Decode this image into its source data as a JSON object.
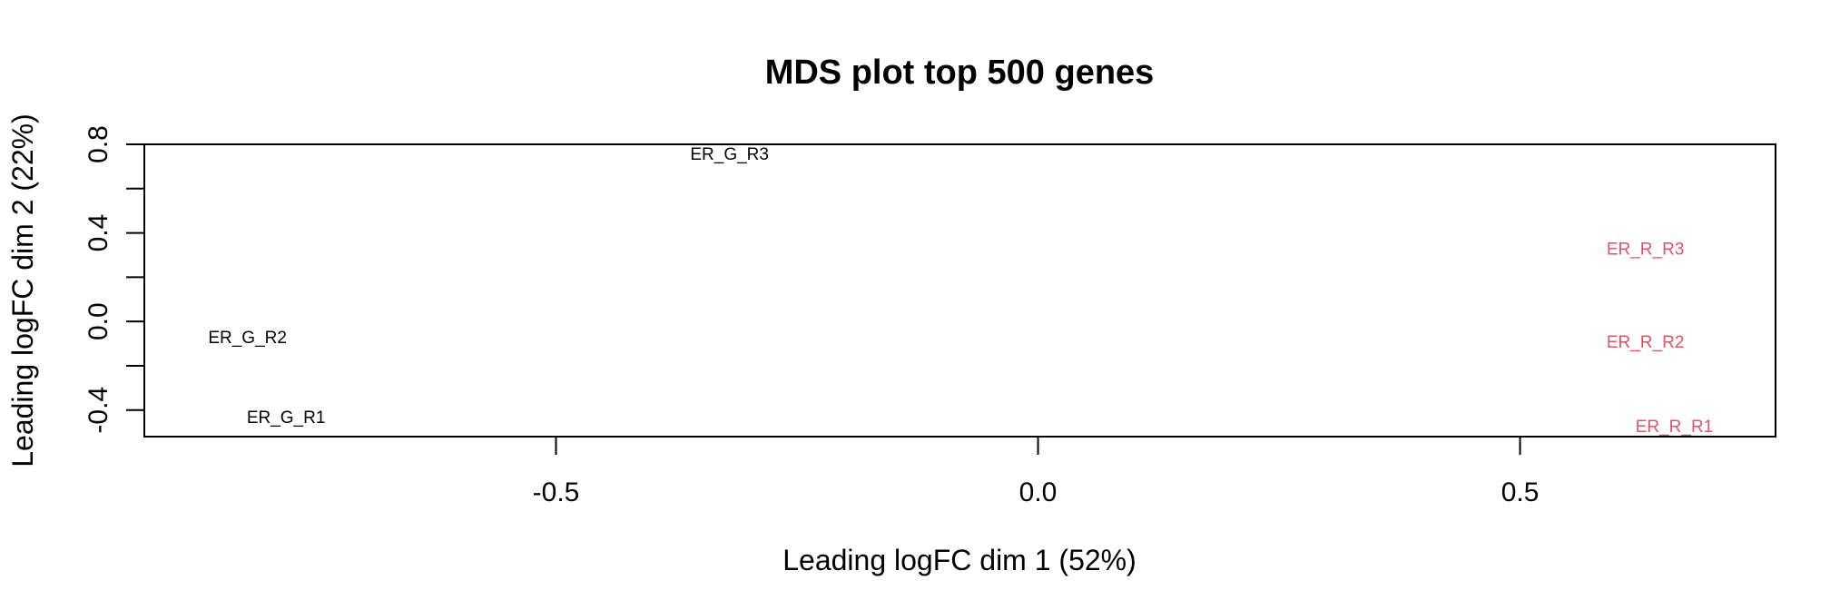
{
  "chart_data": {
    "type": "scatter",
    "title": "MDS plot top 500 genes",
    "xlabel": "Leading logFC dim 1 (52%)",
    "ylabel": "Leading logFC dim 2 (22%)",
    "xlim": [
      -0.927,
      0.765
    ],
    "ylim": [
      -0.52,
      0.8
    ],
    "xticks": [
      -0.5,
      0.0,
      0.5
    ],
    "xtick_labels": [
      "-0.5",
      "0.0",
      "0.5"
    ],
    "yticks": [
      -0.4,
      0.0,
      0.4,
      0.8
    ],
    "ytick_labels": [
      "-0.4",
      "0.0",
      "0.4",
      "0.8"
    ],
    "yminor_ticks": [
      -0.2,
      0.2,
      0.6
    ],
    "grid": false,
    "colors": {
      "group_G": "#000000",
      "group_R": "#DF536B"
    },
    "points": [
      {
        "label": "ER_G_R3",
        "x": -0.32,
        "y": 0.76,
        "color": "#000000"
      },
      {
        "label": "ER_G_R2",
        "x": -0.82,
        "y": -0.07,
        "color": "#000000"
      },
      {
        "label": "ER_G_R1",
        "x": -0.78,
        "y": -0.43,
        "color": "#000000"
      },
      {
        "label": "ER_R_R3",
        "x": 0.63,
        "y": 0.33,
        "color": "#DF536B"
      },
      {
        "label": "ER_R_R2",
        "x": 0.63,
        "y": -0.09,
        "color": "#DF536B"
      },
      {
        "label": "ER_R_R1",
        "x": 0.66,
        "y": -0.47,
        "color": "#DF536B"
      }
    ]
  }
}
